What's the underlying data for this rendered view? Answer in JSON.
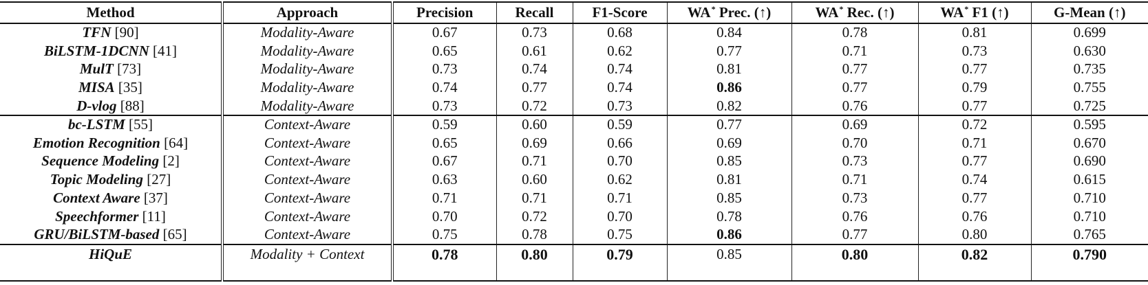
{
  "table": {
    "headers": {
      "method": "Method",
      "approach": "Approach",
      "precision": "Precision",
      "recall": "Recall",
      "f1": "F1-Score",
      "wa_prec_prefix": "WA",
      "wa_prec_suffix": " Prec. (↑)",
      "wa_rec_prefix": "WA",
      "wa_rec_suffix": " Rec. (↑)",
      "wa_f1_prefix": "WA",
      "wa_f1_suffix": " F1 (↑)",
      "gmean": "G-Mean (↑)",
      "star": "*"
    },
    "rows": [
      {
        "name": "TFN",
        "ref": "[90]",
        "approach": "Modality-Aware",
        "precision": "0.67",
        "recall": "0.73",
        "f1": "0.68",
        "wa_prec": "0.84",
        "wa_rec": "0.78",
        "wa_f1": "0.81",
        "gmean": "0.699"
      },
      {
        "name": "BiLSTM-1DCNN",
        "ref": "[41]",
        "approach": "Modality-Aware",
        "precision": "0.65",
        "recall": "0.61",
        "f1": "0.62",
        "wa_prec": "0.77",
        "wa_rec": "0.71",
        "wa_f1": "0.73",
        "gmean": "0.630"
      },
      {
        "name": "MulT",
        "ref": "[73]",
        "approach": "Modality-Aware",
        "precision": "0.73",
        "recall": "0.74",
        "f1": "0.74",
        "wa_prec": "0.81",
        "wa_rec": "0.77",
        "wa_f1": "0.77",
        "gmean": "0.735"
      },
      {
        "name": "MISA",
        "ref": "[35]",
        "approach": "Modality-Aware",
        "precision": "0.74",
        "recall": "0.77",
        "f1": "0.74",
        "wa_prec": "0.86",
        "wa_rec": "0.77",
        "wa_f1": "0.79",
        "gmean": "0.755"
      },
      {
        "name": "D-vlog",
        "ref": "[88]",
        "approach": "Modality-Aware",
        "precision": "0.73",
        "recall": "0.72",
        "f1": "0.73",
        "wa_prec": "0.82",
        "wa_rec": "0.76",
        "wa_f1": "0.77",
        "gmean": "0.725"
      },
      {
        "name": "bc-LSTM",
        "ref": "[55]",
        "approach": "Context-Aware",
        "precision": "0.59",
        "recall": "0.60",
        "f1": "0.59",
        "wa_prec": "0.77",
        "wa_rec": "0.69",
        "wa_f1": "0.72",
        "gmean": "0.595"
      },
      {
        "name": "Emotion Recognition",
        "ref": "[64]",
        "approach": "Context-Aware",
        "precision": "0.65",
        "recall": "0.69",
        "f1": "0.66",
        "wa_prec": "0.69",
        "wa_rec": "0.70",
        "wa_f1": "0.71",
        "gmean": "0.670"
      },
      {
        "name": "Sequence Modeling",
        "ref": "[2]",
        "approach": "Context-Aware",
        "precision": "0.67",
        "recall": "0.71",
        "f1": "0.70",
        "wa_prec": "0.85",
        "wa_rec": "0.73",
        "wa_f1": "0.77",
        "gmean": "0.690"
      },
      {
        "name": "Topic Modeling",
        "ref": "[27]",
        "approach": "Context-Aware",
        "precision": "0.63",
        "recall": "0.60",
        "f1": "0.62",
        "wa_prec": "0.81",
        "wa_rec": "0.71",
        "wa_f1": "0.74",
        "gmean": "0.615"
      },
      {
        "name": "Context Aware",
        "ref": "[37]",
        "approach": "Context-Aware",
        "precision": "0.71",
        "recall": "0.71",
        "f1": "0.71",
        "wa_prec": "0.85",
        "wa_rec": "0.73",
        "wa_f1": "0.77",
        "gmean": "0.710"
      },
      {
        "name": "Speechformer",
        "ref": "[11]",
        "approach": "Context-Aware",
        "precision": "0.70",
        "recall": "0.72",
        "f1": "0.70",
        "wa_prec": "0.78",
        "wa_rec": "0.76",
        "wa_f1": "0.76",
        "gmean": "0.710"
      },
      {
        "name": "GRU/BiLSTM-based",
        "ref": "[65]",
        "approach": "Context-Aware",
        "precision": "0.75",
        "recall": "0.78",
        "f1": "0.75",
        "wa_prec": "0.86",
        "wa_rec": "0.77",
        "wa_f1": "0.80",
        "gmean": "0.765"
      },
      {
        "name": "HiQuE",
        "ref": "",
        "approach": "Modality + Context",
        "precision": "0.78",
        "recall": "0.80",
        "f1": "0.79",
        "wa_prec": "0.85",
        "wa_rec": "0.80",
        "wa_f1": "0.82",
        "gmean": "0.790"
      }
    ],
    "bold_cells": [
      {
        "row": 3,
        "col": "wa_prec"
      },
      {
        "row": 11,
        "col": "wa_prec"
      },
      {
        "row": 12,
        "col": "precision"
      },
      {
        "row": 12,
        "col": "recall"
      },
      {
        "row": 12,
        "col": "f1"
      },
      {
        "row": 12,
        "col": "wa_rec"
      },
      {
        "row": 12,
        "col": "wa_f1"
      },
      {
        "row": 12,
        "col": "gmean"
      }
    ]
  },
  "chart_data": {
    "type": "table",
    "columns": [
      "Method",
      "Approach",
      "Precision",
      "Recall",
      "F1-Score",
      "WA* Prec. (↑)",
      "WA* Rec. (↑)",
      "WA* F1 (↑)",
      "G-Mean (↑)"
    ],
    "rows": [
      [
        "TFN [90]",
        "Modality-Aware",
        0.67,
        0.73,
        0.68,
        0.84,
        0.78,
        0.81,
        0.699
      ],
      [
        "BiLSTM-1DCNN [41]",
        "Modality-Aware",
        0.65,
        0.61,
        0.62,
        0.77,
        0.71,
        0.73,
        0.63
      ],
      [
        "MulT [73]",
        "Modality-Aware",
        0.73,
        0.74,
        0.74,
        0.81,
        0.77,
        0.77,
        0.735
      ],
      [
        "MISA [35]",
        "Modality-Aware",
        0.74,
        0.77,
        0.74,
        0.86,
        0.77,
        0.79,
        0.755
      ],
      [
        "D-vlog [88]",
        "Modality-Aware",
        0.73,
        0.72,
        0.73,
        0.82,
        0.76,
        0.77,
        0.725
      ],
      [
        "bc-LSTM [55]",
        "Context-Aware",
        0.59,
        0.6,
        0.59,
        0.77,
        0.69,
        0.72,
        0.595
      ],
      [
        "Emotion Recognition [64]",
        "Context-Aware",
        0.65,
        0.69,
        0.66,
        0.69,
        0.7,
        0.71,
        0.67
      ],
      [
        "Sequence Modeling [2]",
        "Context-Aware",
        0.67,
        0.71,
        0.7,
        0.85,
        0.73,
        0.77,
        0.69
      ],
      [
        "Topic Modeling [27]",
        "Context-Aware",
        0.63,
        0.6,
        0.62,
        0.81,
        0.71,
        0.74,
        0.615
      ],
      [
        "Context Aware [37]",
        "Context-Aware",
        0.71,
        0.71,
        0.71,
        0.85,
        0.73,
        0.77,
        0.71
      ],
      [
        "Speechformer [11]",
        "Context-Aware",
        0.7,
        0.72,
        0.7,
        0.78,
        0.76,
        0.76,
        0.71
      ],
      [
        "GRU/BiLSTM-based [65]",
        "Context-Aware",
        0.75,
        0.78,
        0.75,
        0.86,
        0.77,
        0.8,
        0.765
      ],
      [
        "HiQuE",
        "Modality + Context",
        0.78,
        0.8,
        0.79,
        0.85,
        0.8,
        0.82,
        0.79
      ]
    ]
  }
}
